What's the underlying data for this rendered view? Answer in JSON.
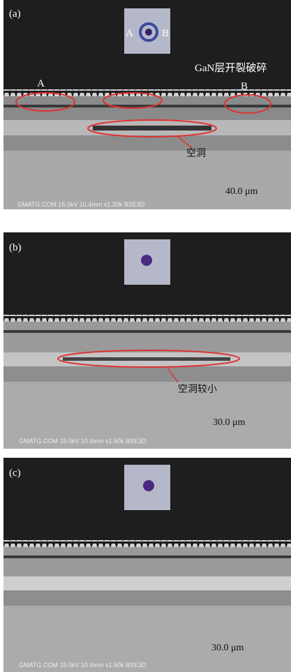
{
  "panels": [
    {
      "label": "(a)",
      "inset_labels": [
        "A",
        "B"
      ],
      "annotations": [
        "GaN层开裂破碎",
        "A",
        "B",
        "空洞"
      ],
      "scale_bar": "40.0 μm",
      "footer": "GMATG.COM 15.0kV 10.4mm x1.20k BSE3D"
    },
    {
      "label": "(b)",
      "annotations": [
        "空洞较小"
      ],
      "scale_bar": "30.0 μm",
      "footer": "GMATG.COM 15.0kV 10.4mm x1.50k BSE3D"
    },
    {
      "label": "(c)",
      "scale_bar": "30.0 μm",
      "footer": "GMATG.COM 15.0kV 10.4mm x1.50k BSE3D"
    }
  ]
}
